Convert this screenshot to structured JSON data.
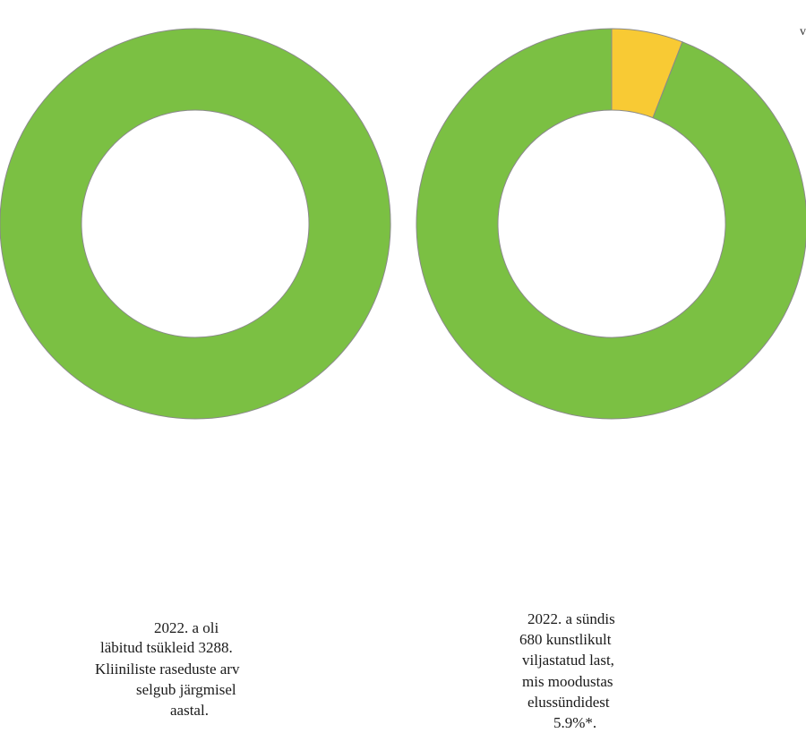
{
  "chart_data": [
    {
      "type": "pie",
      "variant": "donut",
      "slices": [
        {
          "value": 100,
          "color": "#7bc043"
        }
      ],
      "center_text": [
        "2022. a oli",
        "läbitud tsükleid 3288.",
        "Kliiniliste raseduste arv",
        "selgub järgmisel",
        "aastal."
      ]
    },
    {
      "type": "pie",
      "variant": "donut",
      "slices": [
        {
          "value": 5.9,
          "color": "#f8ca34"
        },
        {
          "value": 94.1,
          "color": "#7bc043"
        }
      ],
      "center_text": [
        "2022. a sündis",
        "680 kunstlikult",
        "viljastatud last,",
        "mis moodustas",
        "elussündidest",
        "5.9%*."
      ]
    }
  ],
  "corner_mark": "v"
}
